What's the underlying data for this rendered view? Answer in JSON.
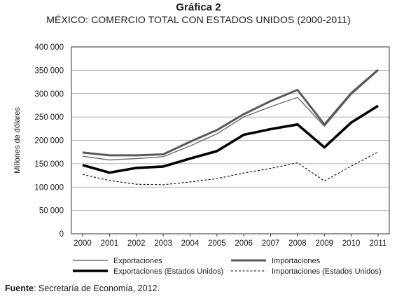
{
  "chart_data": {
    "type": "line",
    "title": "Gráfica 2",
    "subtitle": "MÉXICO: COMERCIO TOTAL CON ESTADOS UNIDOS (2000-2011)",
    "ylabel": "Millones de dólares",
    "xlabel": "",
    "ylim": [
      0,
      400000
    ],
    "y_ticks": [
      0,
      50000,
      100000,
      150000,
      200000,
      250000,
      300000,
      350000,
      400000
    ],
    "y_tick_labels": [
      "0",
      "50 000",
      "100 000",
      "150 000",
      "200 000",
      "250 000",
      "300 000",
      "350 000",
      "400 000"
    ],
    "x": [
      "2000",
      "2001",
      "2002",
      "2003",
      "2004",
      "2005",
      "2006",
      "2007",
      "2008",
      "2009",
      "2010",
      "2011"
    ],
    "grid": "horizontal",
    "legend_position": "bottom",
    "series": [
      {
        "name": "Exportaciones",
        "style": "thin-gray",
        "values": [
          166000,
          158000,
          161000,
          165000,
          188000,
          214000,
          250000,
          272000,
          292000,
          230000,
          298000,
          349000
        ]
      },
      {
        "name": "Importaciones",
        "style": "thick-gray",
        "values": [
          174000,
          168000,
          168000,
          170000,
          197000,
          222000,
          256000,
          284000,
          308000,
          234000,
          301000,
          351000
        ]
      },
      {
        "name": "Exportaciones (Estados Unidos)",
        "style": "thick-black",
        "values": [
          147000,
          131000,
          141000,
          144000,
          161000,
          177000,
          212000,
          224000,
          234000,
          185000,
          238000,
          274000
        ]
      },
      {
        "name": "Importaciones (Estados Unidos)",
        "style": "dashed-black",
        "values": [
          127000,
          114000,
          106000,
          105000,
          111000,
          118000,
          130000,
          140000,
          152000,
          113000,
          145000,
          175000
        ]
      }
    ]
  },
  "source": {
    "label": "Fuente",
    "text": ": Secretaría de Economía, 2012."
  }
}
